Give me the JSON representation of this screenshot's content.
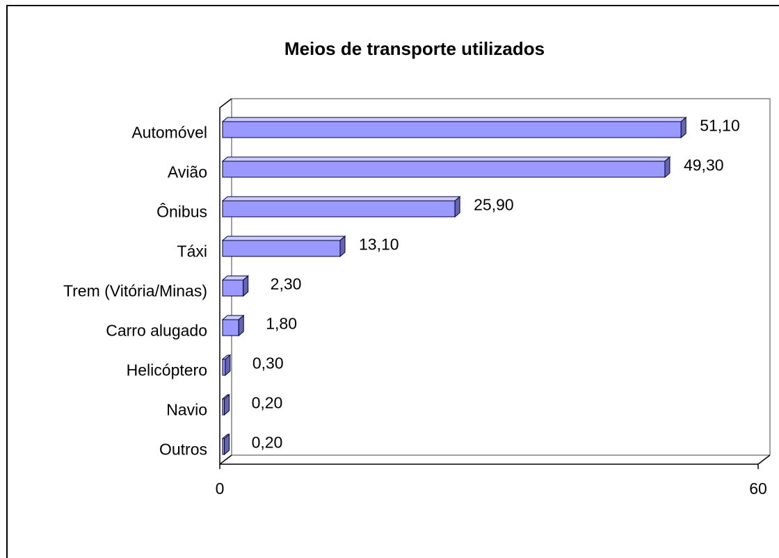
{
  "chart_data": {
    "type": "bar3d_horizontal",
    "title": "Meios de transporte utilizados",
    "categories": [
      "Automóvel",
      "Avião",
      "Ônibus",
      "Táxi",
      "Trem (Vitória/Minas)",
      "Carro alugado",
      "Helicóptero",
      "Navio",
      "Outros"
    ],
    "values": [
      51.1,
      49.3,
      25.9,
      13.1,
      2.3,
      1.8,
      0.3,
      0.2,
      0.2
    ],
    "value_labels": [
      "51,10",
      "49,30",
      "25,90",
      "13,10",
      "2,30",
      "1,80",
      "0,30",
      "0,20",
      "0,20"
    ],
    "color": "#9999ff",
    "xlim": [
      0,
      60
    ],
    "xticks": [
      0,
      60
    ]
  }
}
